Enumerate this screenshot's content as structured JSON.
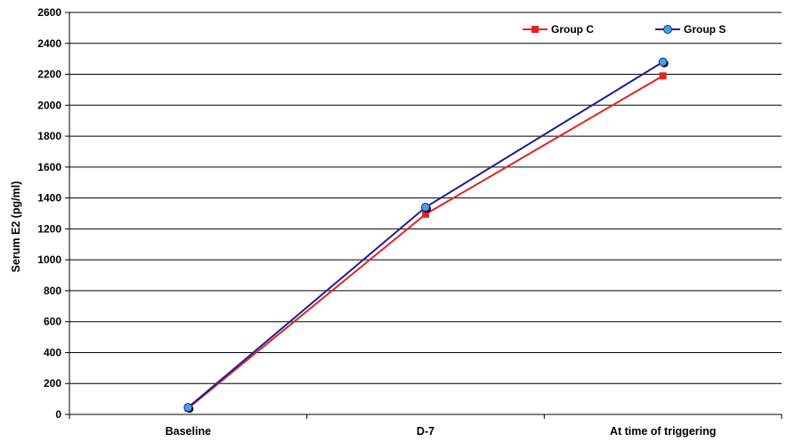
{
  "chart_data": {
    "type": "line",
    "categories": [
      "Baseline",
      "D-7",
      "At time of triggering"
    ],
    "series": [
      {
        "name": "Group C",
        "values": [
          40,
          1295,
          2190
        ],
        "color": "#e02424",
        "marker": "square"
      },
      {
        "name": "Group S",
        "values": [
          45,
          1340,
          2280
        ],
        "color": "#1f1f8f",
        "marker": "circle",
        "marker_fill": "#3fa6e0"
      }
    ],
    "title": "",
    "xlabel": "",
    "ylabel": "Serum E2 (pg/ml)",
    "ylim": [
      0,
      2600
    ],
    "yticks": [
      "0",
      "200",
      "400",
      "600",
      "800",
      "1000",
      "1200",
      "1400",
      "1600",
      "1800",
      "2000",
      "2200",
      "2400",
      "2600"
    ],
    "grid": "horizontal",
    "legend": "top-right"
  }
}
